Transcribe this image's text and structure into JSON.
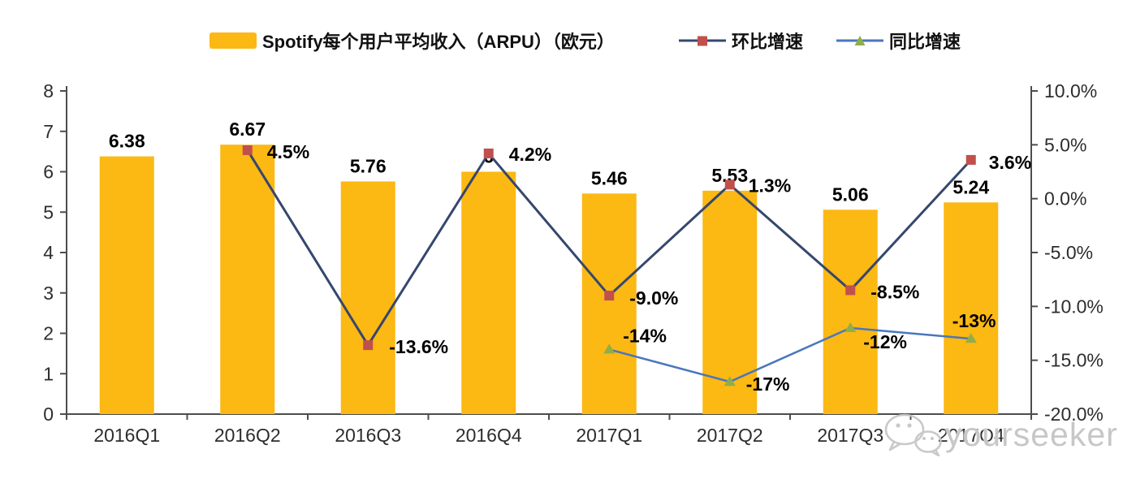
{
  "page": {
    "background": "#ffffff"
  },
  "colors": {
    "bar": "#FCB813",
    "qoq_line": "#35476D",
    "qoq_marker": "#C0504D",
    "yoy_line": "#4A76BE",
    "yoy_marker": "#8FAE49",
    "axis": "#4d4d4d",
    "tick_text": "#2d2d2d",
    "data_label": "#000000",
    "watermark": "#c7c7c7"
  },
  "legend": {
    "items": [
      {
        "id": "arpu",
        "label": "Spotify每个用户平均收入（ARPU）（欧元）"
      },
      {
        "id": "qoq",
        "label": "环比增速"
      },
      {
        "id": "yoy",
        "label": "同比增速"
      }
    ]
  },
  "watermark": {
    "icon": "wechat-icon",
    "text": "yourseeker"
  },
  "chart_data": {
    "type": "bar+line",
    "title": "Spotify每个用户平均收入（ARPU）（欧元）",
    "categories": [
      "2016Q1",
      "2016Q2",
      "2016Q3",
      "2016Q4",
      "2017Q1",
      "2017Q2",
      "2017Q3",
      "2017Q4"
    ],
    "series": [
      {
        "name": "Spotify每个用户平均收入（ARPU）（欧元）",
        "type": "bar",
        "axis": "left",
        "values": [
          6.38,
          6.67,
          5.76,
          6,
          5.46,
          5.53,
          5.06,
          5.24
        ],
        "labels": [
          "6.38",
          "6.67",
          "5.76",
          "6",
          "5.46",
          "5.53",
          "5.06",
          "5.24"
        ]
      },
      {
        "name": "环比增速",
        "type": "line",
        "marker": "square",
        "axis": "right",
        "values": [
          null,
          4.5,
          -13.6,
          4.2,
          -9.0,
          1.3,
          -8.5,
          3.6
        ],
        "labels": [
          null,
          "4.5%",
          "-13.6%",
          "4.2%",
          "-9.0%",
          "1.3%",
          "-8.5%",
          "3.6%"
        ],
        "label_offsets": [
          null,
          [
            24,
            10
          ],
          [
            26,
            10
          ],
          [
            25,
            9
          ],
          [
            25,
            11
          ],
          [
            23,
            9
          ],
          [
            25,
            10
          ],
          [
            22,
            11
          ]
        ]
      },
      {
        "name": "同比增速",
        "type": "line",
        "marker": "triangle",
        "axis": "right",
        "values": [
          null,
          null,
          null,
          null,
          -14,
          -17,
          -12,
          -13
        ],
        "labels": [
          null,
          null,
          null,
          null,
          "-14%",
          "-17%",
          "-12%",
          "-13%"
        ],
        "label_offsets": [
          null,
          null,
          null,
          null,
          [
            17,
            -9
          ],
          [
            20,
            11
          ],
          [
            16,
            25
          ],
          [
            -23,
            -14
          ]
        ]
      }
    ],
    "left_axis": {
      "min": 0,
      "max": 8,
      "step": 1,
      "tick_labels": [
        "0",
        "1",
        "2",
        "3",
        "4",
        "5",
        "6",
        "7",
        "8"
      ]
    },
    "right_axis": {
      "min": -20,
      "max": 10,
      "step": 5,
      "tick_labels": [
        "10.0%",
        "5.0%",
        "0.0%",
        "-5.0%",
        "-10.0%",
        "-15.0%",
        "-20.0%"
      ]
    },
    "grid": false,
    "legend_position": "top"
  }
}
